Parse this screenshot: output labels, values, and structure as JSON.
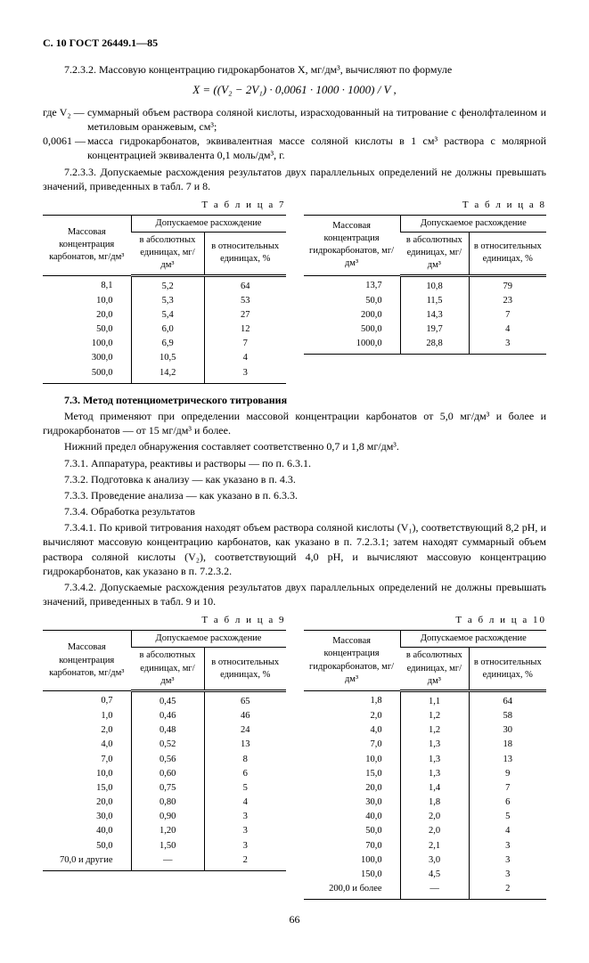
{
  "header": "С. 10 ГОСТ 26449.1—85",
  "pageno": "66",
  "p7232": "7.2.3.2. Массовую концентрацию гидрокарбонатов X, мг/дм³, вычисляют по формуле",
  "formula": "X = ((V₂ − 2V₁) · 0,0061 · 1000 · 1000) / V ,",
  "where_v2_sym": "где  V₂  —",
  "where_v2_def": "суммарный объем раствора соляной кислоты, израсходованный на титрование с фенолфталеином и метиловым оранжевым, см³;",
  "where_k_sym": "0,0061  —",
  "where_k_def": "масса гидрокарбонатов, эквивалентная массе соляной кислоты в 1 см³ раствора с молярной концентрацией эквивалента 0,1 моль/дм³, г.",
  "p7233": "7.2.3.3. Допускаемые расхождения результатов двух параллельных определений не должны превышать значений, приведенных в табл. 7 и 8.",
  "tbl7_cap": "Т а б л и ц а  7",
  "tbl8_cap": "Т а б л и ц а  8",
  "tbl9_cap": "Т а б л и ц а  9",
  "tbl10_cap": "Т а б л и ц а  10",
  "h_carb": "Массовая концентрация карбонатов, мг/дм³",
  "h_bicarb": "Массовая концентрация гидрокарбонатов, мг/дм³",
  "h_allow": "Допускаемое расхождение",
  "h_abs": "в абсолютных единицах, мг/дм³",
  "h_rel": "в относительных единицах, %",
  "t7": [
    [
      "8,1",
      "5,2",
      "64"
    ],
    [
      "10,0",
      "5,3",
      "53"
    ],
    [
      "20,0",
      "5,4",
      "27"
    ],
    [
      "50,0",
      "6,0",
      "12"
    ],
    [
      "100,0",
      "6,9",
      "7"
    ],
    [
      "300,0",
      "10,5",
      "4"
    ],
    [
      "500,0",
      "14,2",
      "3"
    ]
  ],
  "t8": [
    [
      "13,7",
      "10,8",
      "79"
    ],
    [
      "50,0",
      "11,5",
      "23"
    ],
    [
      "200,0",
      "14,3",
      "7"
    ],
    [
      "500,0",
      "19,7",
      "4"
    ],
    [
      "1000,0",
      "28,8",
      "3"
    ]
  ],
  "sec73": "7.3. Метод потенциометрического титрования",
  "p73a": "Метод применяют при определении массовой концентрации карбонатов от 5,0 мг/дм³ и более и гидрокарбонатов — от 15 мг/дм³ и более.",
  "p73b": "Нижний предел обнаружения составляет соответственно 0,7 и 1,8 мг/дм³.",
  "p731": "7.3.1. Аппаратура, реактивы и растворы — по п. 6.3.1.",
  "p732": "7.3.2. Подготовка к анализу — как указано в п. 4.3.",
  "p733": "7.3.3. Проведение анализа — как указано в п. 6.3.3.",
  "p734": "7.3.4. Обработка результатов",
  "p7341": "7.3.4.1. По кривой титрования находят объем раствора соляной кислоты (V₁), соответствующий 8,2 pH, и вычисляют массовую концентрацию карбонатов, как указано в п. 7.2.3.1; затем находят суммарный объем раствора соляной кислоты (V₂), соответствующий 4,0 pH, и вычисляют массовую концентрацию гидрокарбонатов, как указано в п. 7.2.3.2.",
  "p7342": "7.3.4.2. Допускаемые расхождения результатов двух параллельных определений не должны превышать значений, приведенных в табл. 9 и 10.",
  "t9": [
    [
      "0,7",
      "0,45",
      "65"
    ],
    [
      "1,0",
      "0,46",
      "46"
    ],
    [
      "2,0",
      "0,48",
      "24"
    ],
    [
      "4,0",
      "0,52",
      "13"
    ],
    [
      "7,0",
      "0,56",
      "8"
    ],
    [
      "10,0",
      "0,60",
      "6"
    ],
    [
      "15,0",
      "0,75",
      "5"
    ],
    [
      "20,0",
      "0,80",
      "4"
    ],
    [
      "30,0",
      "0,90",
      "3"
    ],
    [
      "40,0",
      "1,20",
      "3"
    ],
    [
      "50,0",
      "1,50",
      "3"
    ],
    [
      "70,0 и другие",
      "—",
      "2"
    ]
  ],
  "t10": [
    [
      "1,8",
      "1,1",
      "64"
    ],
    [
      "2,0",
      "1,2",
      "58"
    ],
    [
      "4,0",
      "1,2",
      "30"
    ],
    [
      "7,0",
      "1,3",
      "18"
    ],
    [
      "10,0",
      "1,3",
      "13"
    ],
    [
      "15,0",
      "1,3",
      "9"
    ],
    [
      "20,0",
      "1,4",
      "7"
    ],
    [
      "30,0",
      "1,8",
      "6"
    ],
    [
      "40,0",
      "2,0",
      "5"
    ],
    [
      "50,0",
      "2,0",
      "4"
    ],
    [
      "70,0",
      "2,1",
      "3"
    ],
    [
      "100,0",
      "3,0",
      "3"
    ],
    [
      "150,0",
      "4,5",
      "3"
    ],
    [
      "200,0 и более",
      "—",
      "2"
    ]
  ]
}
